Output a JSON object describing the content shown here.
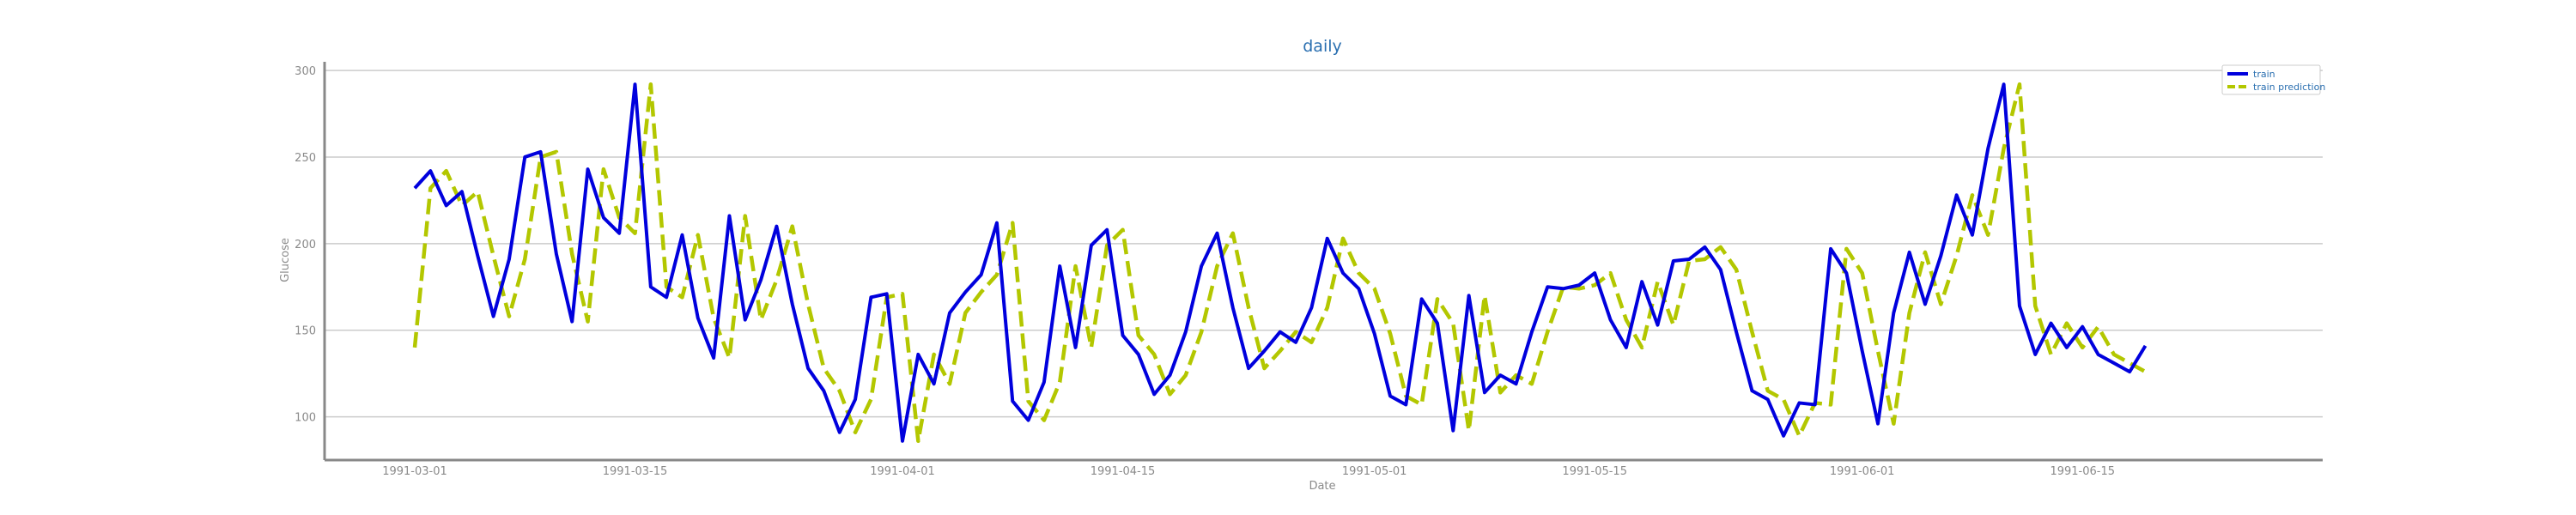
{
  "chart_data": {
    "type": "line",
    "title": "daily",
    "xlabel": "Date",
    "ylabel": "Glucose",
    "ylim": [
      75,
      305
    ],
    "yticks": [
      100,
      150,
      200,
      250,
      300
    ],
    "xticks": [
      "1991-03-01",
      "1991-03-15",
      "1991-04-01",
      "1991-04-15",
      "1991-05-01",
      "1991-05-15",
      "1991-06-01",
      "1991-06-15"
    ],
    "grid": "horizontal",
    "legend_position": "top-right",
    "x_start": "1991-03-01",
    "series": [
      {
        "name": "train",
        "color": "#0000dd",
        "style": "solid",
        "values": [
          232,
          242,
          222,
          230,
          193,
          158,
          191,
          250,
          253,
          194,
          155,
          243,
          215,
          206,
          292,
          175,
          169,
          205,
          157,
          134,
          216,
          156,
          179,
          210,
          165,
          128,
          115,
          91,
          110,
          169,
          171,
          86,
          136,
          119,
          160,
          172,
          182,
          212,
          109,
          98,
          120,
          187,
          140,
          199,
          208,
          147,
          136,
          113,
          124,
          149,
          187,
          206,
          163,
          128,
          138,
          149,
          143,
          163,
          203,
          183,
          174,
          148,
          112,
          107,
          168,
          154,
          92,
          170,
          114,
          124,
          119,
          149,
          175,
          174,
          176,
          183,
          156,
          140,
          178,
          153,
          190,
          191,
          198,
          185,
          149,
          115,
          110,
          89,
          108,
          107,
          197,
          183,
          138,
          96,
          160,
          195,
          165,
          193,
          228,
          205,
          255,
          292,
          164,
          136,
          154,
          140,
          152,
          136,
          131,
          126,
          141
        ]
      },
      {
        "name": "train prediction",
        "color": "#b3c700",
        "style": "dashed",
        "values": [
          140,
          232,
          242,
          222,
          230,
          193,
          158,
          191,
          250,
          253,
          194,
          155,
          243,
          215,
          206,
          292,
          175,
          169,
          205,
          157,
          134,
          216,
          156,
          179,
          210,
          165,
          128,
          115,
          91,
          110,
          169,
          171,
          86,
          136,
          119,
          160,
          172,
          182,
          212,
          109,
          98,
          120,
          187,
          140,
          199,
          208,
          147,
          136,
          113,
          124,
          149,
          187,
          206,
          163,
          128,
          138,
          149,
          143,
          163,
          203,
          183,
          174,
          148,
          112,
          107,
          168,
          154,
          92,
          170,
          114,
          124,
          119,
          149,
          175,
          174,
          176,
          183,
          156,
          140,
          178,
          153,
          190,
          191,
          198,
          185,
          149,
          115,
          110,
          89,
          108,
          107,
          197,
          183,
          138,
          96,
          160,
          195,
          165,
          193,
          228,
          205,
          255,
          292,
          164,
          136,
          154,
          140,
          152,
          136,
          131,
          126
        ]
      }
    ]
  }
}
